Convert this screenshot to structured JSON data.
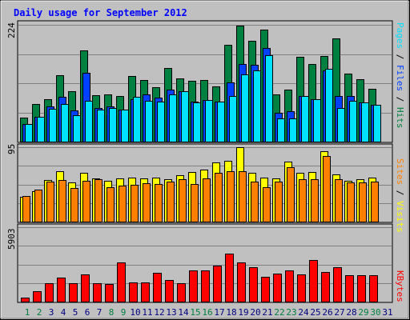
{
  "title": "Daily usage for September 2012",
  "colors": {
    "frame_bg": "#c0c0c0",
    "title_text": "#0000ff",
    "hits": "#008040",
    "files": "#0040ff",
    "pages": "#00e0ff",
    "visits": "#ffff00",
    "sites": "#ff8000",
    "kbytes": "#ff0000",
    "weekend_day": "#008040",
    "weekday": "#000080"
  },
  "panels": {
    "top": {
      "max_label": "224",
      "legend": [
        {
          "text": "Pages",
          "color": "#00e0ff"
        },
        {
          "text": " / ",
          "color": "#000000"
        },
        {
          "text": "Files",
          "color": "#0040ff"
        },
        {
          "text": " / ",
          "color": "#000000"
        },
        {
          "text": "Hits",
          "color": "#008040"
        }
      ]
    },
    "middle": {
      "max_label": "95",
      "legend": [
        {
          "text": "Sites",
          "color": "#ff8000"
        },
        {
          "text": " / ",
          "color": "#000000"
        },
        {
          "text": "Visits",
          "color": "#ffff00"
        }
      ]
    },
    "bottom": {
      "max_label": "5903",
      "legend": [
        {
          "text": "KBytes",
          "color": "#ff0000"
        }
      ]
    }
  },
  "chart_data": {
    "type": "bar",
    "title": "Daily usage for September 2012",
    "categories": [
      "1",
      "2",
      "3",
      "4",
      "5",
      "6",
      "7",
      "8",
      "9",
      "10",
      "11",
      "12",
      "13",
      "14",
      "15",
      "16",
      "17",
      "18",
      "19",
      "20",
      "21",
      "22",
      "23",
      "24",
      "25",
      "26",
      "27",
      "28",
      "29",
      "30",
      "31"
    ],
    "weekend_days": [
      "1",
      "2",
      "8",
      "9",
      "15",
      "16",
      "22",
      "23",
      "29",
      "30"
    ],
    "panels": [
      {
        "name": "top",
        "ylim": [
          0,
          224
        ],
        "series": [
          {
            "name": "Hits",
            "values": [
              46,
              72,
              82,
              127,
              96,
              175,
              89,
              90,
              87,
              126,
              118,
              105,
              141,
              121,
              116,
              118,
              106,
              185,
              222,
              194,
              215,
              90,
              100,
              162,
              149,
              164,
              198,
              130,
              119,
              102,
              null
            ]
          },
          {
            "name": "Files",
            "values": [
              33,
              48,
              68,
              86,
              60,
              132,
              64,
              68,
              62,
              82,
              90,
              84,
              99,
              96,
              76,
              80,
              76,
              114,
              149,
              147,
              179,
              55,
              58,
              88,
              82,
              136,
              88,
              87,
              75,
              70,
              null
            ]
          },
          {
            "name": "Pages",
            "values": [
              33,
              48,
              63,
              72,
              51,
              78,
              62,
              64,
              62,
              86,
              79,
              76,
              90,
              97,
              75,
              80,
              76,
              87,
              129,
              136,
              165,
              45,
              45,
              88,
              82,
              139,
              65,
              78,
              75,
              70,
              null
            ]
          }
        ]
      },
      {
        "name": "middle",
        "ylim": [
          0,
          95
        ],
        "series": [
          {
            "name": "Visits",
            "values": [
              32,
              39,
              53,
              64,
              50,
              62,
              55,
              52,
              55,
              56,
              55,
              56,
              54,
              59,
              63,
              66,
              76,
              78,
              95,
              62,
              56,
              55,
              77,
              62,
              63,
              90,
              60,
              52,
              54,
              56,
              null
            ]
          },
          {
            "name": "Sites",
            "values": [
              33,
              41,
              51,
              53,
              43,
              52,
              54,
              44,
              46,
              47,
              49,
              48,
              51,
              54,
              48,
              55,
              62,
              64,
              64,
              51,
              44,
              51,
              69,
              54,
              54,
              84,
              54,
              50,
              50,
              51,
              null
            ]
          }
        ]
      },
      {
        "name": "bottom",
        "ylim": [
          0,
          5903
        ],
        "series": [
          {
            "name": "KBytes",
            "values": [
              290,
              830,
              1450,
              1930,
              1430,
              2180,
              1430,
              1380,
              3080,
              1500,
              1500,
              2280,
              1700,
              1480,
              2480,
              2480,
              2860,
              3800,
              3140,
              2740,
              1960,
              2220,
              2480,
              2180,
              3270,
              2360,
              2700,
              2100,
              2080,
              2080,
              null
            ]
          }
        ]
      }
    ]
  }
}
